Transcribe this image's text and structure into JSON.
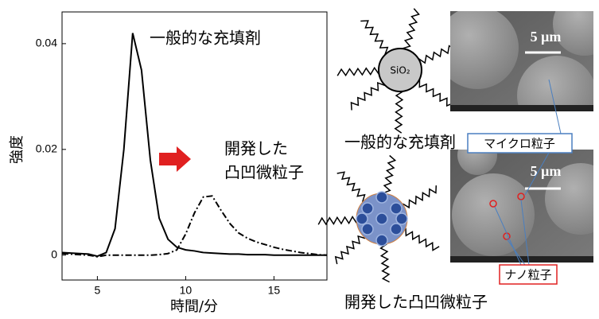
{
  "chart_data": {
    "type": "line",
    "xlabel": "時間/分",
    "ylabel": "強度",
    "x": [
      3,
      3.5,
      4,
      4.5,
      5,
      5.5,
      6,
      6.5,
      7,
      7.5,
      8,
      8.5,
      9,
      9.5,
      10,
      10.5,
      11,
      11.5,
      12,
      12.5,
      13,
      13.5,
      14,
      14.5,
      15,
      15.5,
      16,
      16.5,
      17,
      17.5,
      18
    ],
    "series": [
      {
        "color": "#000000",
        "dash": "solid",
        "values": [
          0.0005,
          0.0004,
          0.0003,
          0.0002,
          -0.0002,
          0.0005,
          0.005,
          0.02,
          0.042,
          0.035,
          0.018,
          0.007,
          0.003,
          0.0015,
          0.001,
          0.0008,
          0.0005,
          0.0004,
          0.0003,
          0.0002,
          0.0002,
          0.0001,
          0.0001,
          0.0001,
          0,
          0,
          0,
          0,
          0,
          0,
          0
        ]
      },
      {
        "color": "#000000",
        "dash": "dashdot",
        "values": [
          0.0003,
          0.0002,
          0.0001,
          0,
          -0.0003,
          0,
          0,
          0,
          0,
          0,
          0,
          0.0001,
          0.0003,
          0.001,
          0.004,
          0.008,
          0.011,
          0.0112,
          0.0085,
          0.006,
          0.0042,
          0.0032,
          0.0025,
          0.002,
          0.0015,
          0.0011,
          0.0008,
          0.0005,
          0.0003,
          0.0001,
          0
        ]
      }
    ],
    "xlim": [
      3,
      18
    ],
    "xticks": [
      5,
      10,
      15
    ],
    "ylim": [
      -0.0047,
      0.046
    ],
    "yticks": [
      0,
      0.02,
      0.04
    ],
    "annotations": [
      "一般的な充填剤",
      "開発した",
      "凸凹微粒子"
    ]
  },
  "figure": {
    "core_label": "SiO₂",
    "scale_top": "5 μm",
    "scale_bottom": "5 μm",
    "caption_top": "一般的な充填剤",
    "caption_bottom": "開発した凸凹微粒子",
    "micro_label": "マイクロ粒子",
    "nano_label": "ナノ粒子"
  }
}
